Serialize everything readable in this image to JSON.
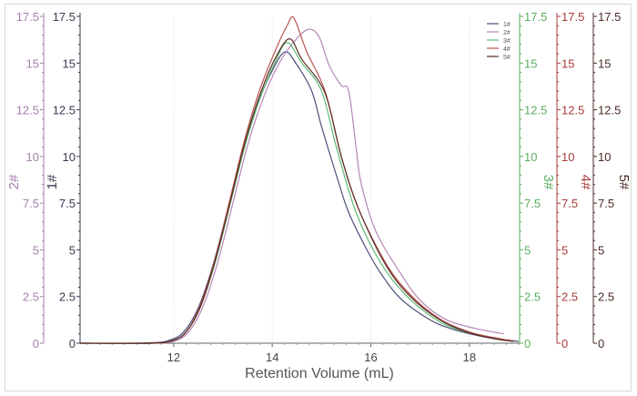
{
  "chart_data": {
    "type": "line",
    "xlabel": "Retention Volume (mL)",
    "xlim": [
      10.1,
      19.0
    ],
    "xticks": [
      12,
      14,
      16,
      18
    ],
    "grid": "vertical dotted lines at x ticks",
    "legend_position": "top-right",
    "y_axes": [
      {
        "label": "2#",
        "side": "left-outer",
        "color": "#a57fab",
        "ylim": [
          0,
          17.5
        ],
        "ticks": [
          "0",
          "2.5",
          "5",
          "7.5",
          "10",
          "12.5",
          "15",
          "17.5"
        ]
      },
      {
        "label": "1#",
        "side": "left-inner",
        "color": "#3a3a52",
        "ylim": [
          0,
          17.5
        ],
        "ticks": [
          "0",
          "2.5",
          "5",
          "7.5",
          "10",
          "12.5",
          "15",
          "17.5"
        ]
      },
      {
        "label": "3#",
        "side": "right-1",
        "color": "#5aae5e",
        "ylim": [
          0,
          17.5
        ],
        "ticks": [
          "0",
          "2.5",
          "5",
          "7.5",
          "10",
          "12.5",
          "15",
          "17.5"
        ]
      },
      {
        "label": "4#",
        "side": "right-2",
        "color": "#a83a36",
        "ylim": [
          0,
          17.5
        ],
        "ticks": [
          "0",
          "2.5",
          "5",
          "7.5",
          "10",
          "12.5",
          "15",
          "17.5"
        ]
      },
      {
        "label": "5#",
        "side": "right-3",
        "color": "#4a2a25",
        "ylim": [
          0,
          17.5
        ],
        "ticks": [
          "0",
          "2.5",
          "5",
          "7.5",
          "10",
          "12.5",
          "15",
          "17.5"
        ]
      }
    ],
    "series": [
      {
        "name": "1#",
        "color": "#4b4b7a",
        "points": [
          [
            10.1,
            0
          ],
          [
            11.5,
            0.02
          ],
          [
            11.9,
            0.15
          ],
          [
            12.2,
            0.6
          ],
          [
            12.5,
            1.9
          ],
          [
            12.8,
            4.2
          ],
          [
            13.1,
            7.2
          ],
          [
            13.4,
            10.3
          ],
          [
            13.7,
            12.8
          ],
          [
            14.0,
            14.6
          ],
          [
            14.26,
            15.6
          ],
          [
            14.5,
            14.9
          ],
          [
            14.8,
            13.5
          ],
          [
            15.0,
            11.6
          ],
          [
            15.3,
            9.0
          ],
          [
            15.55,
            7.0
          ],
          [
            15.9,
            5.1
          ],
          [
            16.2,
            3.75
          ],
          [
            16.6,
            2.4
          ],
          [
            17.17,
            1.3
          ],
          [
            17.6,
            0.8
          ],
          [
            18.1,
            0.45
          ],
          [
            18.6,
            0.2
          ],
          [
            19.0,
            0.1
          ]
        ]
      },
      {
        "name": "2#",
        "color": "#b587b5",
        "points": [
          [
            10.1,
            0
          ],
          [
            11.6,
            0
          ],
          [
            12.0,
            0.1
          ],
          [
            12.3,
            0.6
          ],
          [
            12.6,
            2.0
          ],
          [
            12.9,
            4.4
          ],
          [
            13.2,
            7.5
          ],
          [
            13.5,
            10.6
          ],
          [
            13.8,
            13.0
          ],
          [
            14.1,
            14.8
          ],
          [
            14.4,
            16.0
          ],
          [
            14.72,
            16.8
          ],
          [
            14.95,
            16.4
          ],
          [
            15.15,
            14.9
          ],
          [
            15.4,
            13.8
          ],
          [
            15.55,
            13.5
          ],
          [
            15.7,
            10.5
          ],
          [
            15.8,
            8.6
          ],
          [
            16.1,
            6.0
          ],
          [
            16.6,
            3.75
          ],
          [
            17.0,
            2.3
          ],
          [
            17.5,
            1.3
          ],
          [
            18.1,
            0.8
          ],
          [
            18.7,
            0.5
          ]
        ]
      },
      {
        "name": "3#",
        "color": "#5cba74",
        "points": [
          [
            10.1,
            0
          ],
          [
            11.5,
            0
          ],
          [
            11.95,
            0.12
          ],
          [
            12.25,
            0.6
          ],
          [
            12.55,
            2.0
          ],
          [
            12.85,
            4.4
          ],
          [
            13.15,
            7.5
          ],
          [
            13.45,
            10.6
          ],
          [
            13.75,
            13.1
          ],
          [
            14.05,
            15.0
          ],
          [
            14.3,
            16.1
          ],
          [
            14.6,
            15.0
          ],
          [
            15.0,
            13.5
          ],
          [
            15.3,
            10.5
          ],
          [
            15.7,
            7.0
          ],
          [
            16.2,
            4.3
          ],
          [
            16.7,
            2.6
          ],
          [
            17.3,
            1.3
          ],
          [
            17.8,
            0.7
          ],
          [
            18.5,
            0.25
          ],
          [
            18.9,
            0.1
          ]
        ]
      },
      {
        "name": "4#",
        "color": "#b8524e",
        "points": [
          [
            10.1,
            0
          ],
          [
            11.5,
            0
          ],
          [
            11.95,
            0.12
          ],
          [
            12.25,
            0.6
          ],
          [
            12.55,
            2.1
          ],
          [
            12.85,
            4.6
          ],
          [
            13.15,
            7.8
          ],
          [
            13.45,
            11.0
          ],
          [
            13.75,
            13.6
          ],
          [
            14.05,
            15.6
          ],
          [
            14.3,
            17.0
          ],
          [
            14.44,
            17.4
          ],
          [
            14.7,
            15.6
          ],
          [
            15.07,
            13.5
          ],
          [
            15.4,
            10.0
          ],
          [
            15.75,
            7.2
          ],
          [
            16.3,
            4.3
          ],
          [
            16.8,
            2.6
          ],
          [
            17.4,
            1.3
          ],
          [
            18.0,
            0.6
          ],
          [
            18.6,
            0.25
          ],
          [
            18.9,
            0.12
          ]
        ]
      },
      {
        "name": "5#",
        "color": "#5a2b24",
        "points": [
          [
            10.1,
            0
          ],
          [
            11.5,
            0
          ],
          [
            11.95,
            0.12
          ],
          [
            12.25,
            0.6
          ],
          [
            12.55,
            2.0
          ],
          [
            12.85,
            4.5
          ],
          [
            13.15,
            7.6
          ],
          [
            13.45,
            10.8
          ],
          [
            13.75,
            13.3
          ],
          [
            14.05,
            15.2
          ],
          [
            14.35,
            16.3
          ],
          [
            14.6,
            15.2
          ],
          [
            15.07,
            13.4
          ],
          [
            15.4,
            10.0
          ],
          [
            15.75,
            7.2
          ],
          [
            16.3,
            4.2
          ],
          [
            16.8,
            2.5
          ],
          [
            17.4,
            1.25
          ],
          [
            18.0,
            0.55
          ],
          [
            18.6,
            0.2
          ],
          [
            18.9,
            0.1
          ]
        ]
      }
    ]
  }
}
